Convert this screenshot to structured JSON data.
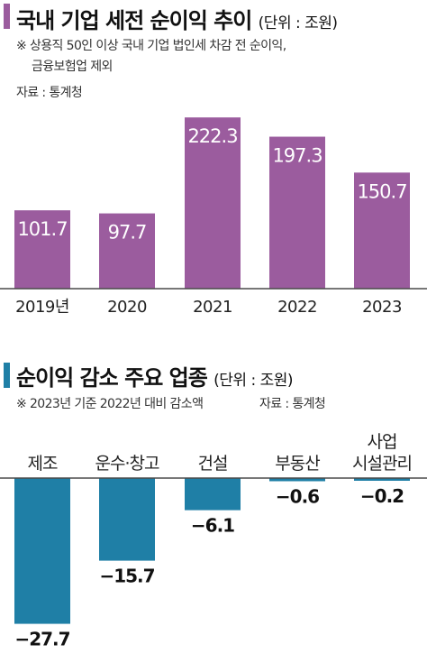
{
  "colors": {
    "purple": "#9b5c9e",
    "teal": "#1f7fa6",
    "axis": "#4a4a4a"
  },
  "chart_data": [
    {
      "type": "bar",
      "title": "국내 기업 세전 순이익 추이",
      "unit": "(단위 : 조원)",
      "notes": [
        "※ 상용직 50인 이상 국내 기업 법인세 차감 전 순이익,",
        "금융보험업 제외",
        "자료 : 통계청"
      ],
      "categories": [
        "2019년",
        "2020",
        "2021",
        "2022",
        "2023"
      ],
      "values": [
        101.7,
        97.7,
        222.3,
        197.3,
        150.7
      ],
      "value_labels": [
        "101.7",
        "97.7",
        "222.3",
        "197.3",
        "150.7"
      ],
      "ylim": [
        0,
        260
      ],
      "grid": false,
      "legend": "none"
    },
    {
      "type": "bar",
      "title": "순이익 감소 주요 업종",
      "unit": "(단위 : 조원)",
      "notes": [
        "※ 2023년 기준 2022년 대비 감소액",
        "자료 : 통계청"
      ],
      "categories": [
        [
          "제조"
        ],
        [
          "운수·창고"
        ],
        [
          "건설"
        ],
        [
          "부동산"
        ],
        [
          "사업",
          "시설관리"
        ]
      ],
      "values": [
        -27.7,
        -15.7,
        -6.1,
        -0.6,
        -0.2
      ],
      "value_labels": [
        "−27.7",
        "−15.7",
        "−6.1",
        "−0.6",
        "−0.2"
      ],
      "ylim": [
        -30,
        0
      ],
      "grid": false,
      "legend": "none"
    }
  ]
}
